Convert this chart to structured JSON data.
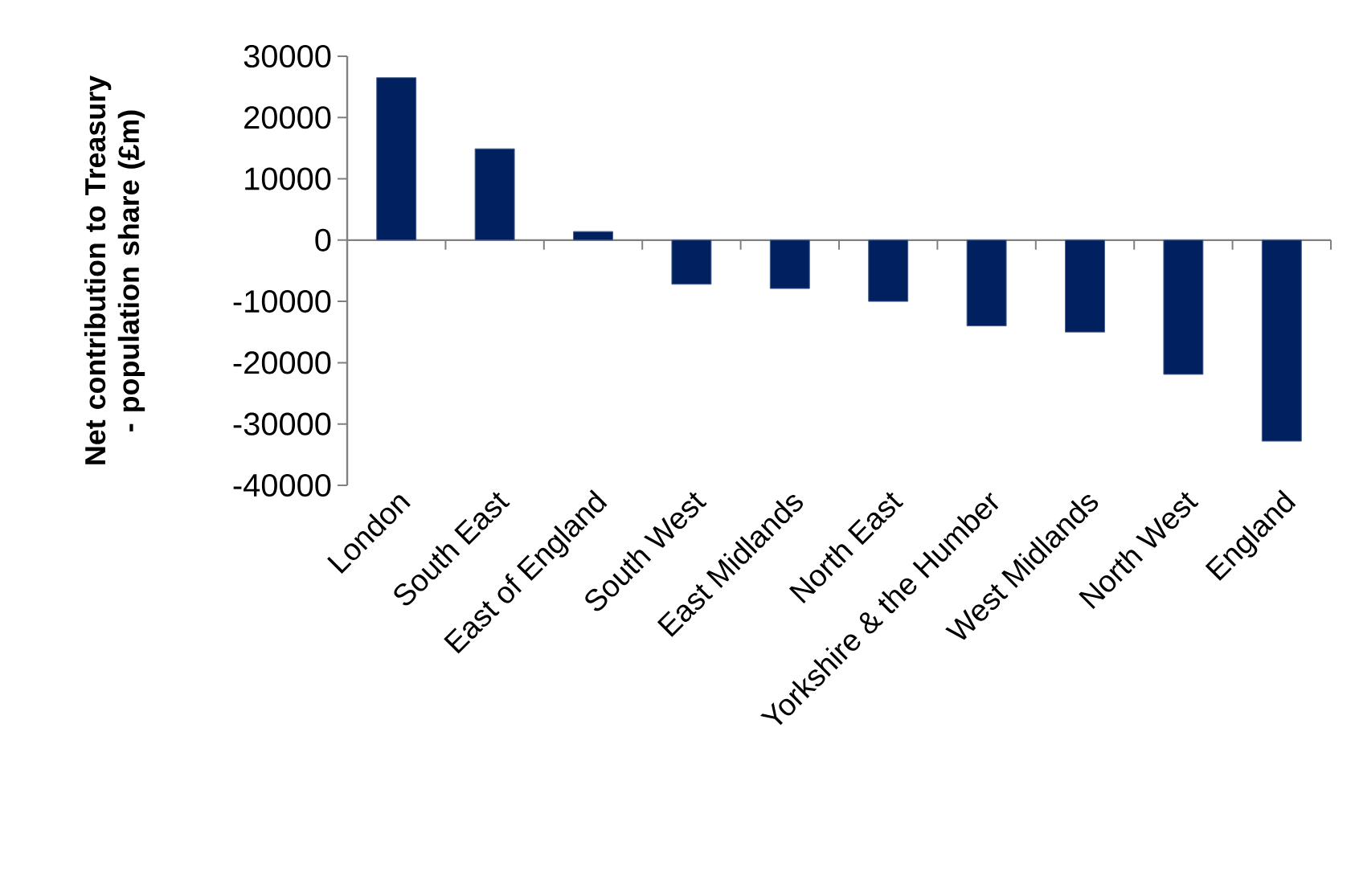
{
  "chart_data": {
    "type": "bar",
    "ylabel": "Net contribution to Treasury - population share  (£m)",
    "categories": [
      "London",
      "South East",
      "East of England",
      "South West",
      "East Midlands",
      "North East",
      "Yorkshire & the Humber",
      "West Midlands",
      "North West",
      "England"
    ],
    "values": [
      26500,
      14900,
      1400,
      -7200,
      -7900,
      -10000,
      -14000,
      -15000,
      -21900,
      -32800
    ],
    "color": "#002060",
    "ylim": [
      -40000,
      30000
    ],
    "yticks": [
      -40000,
      -30000,
      -20000,
      -10000,
      0,
      10000,
      20000,
      30000
    ]
  }
}
